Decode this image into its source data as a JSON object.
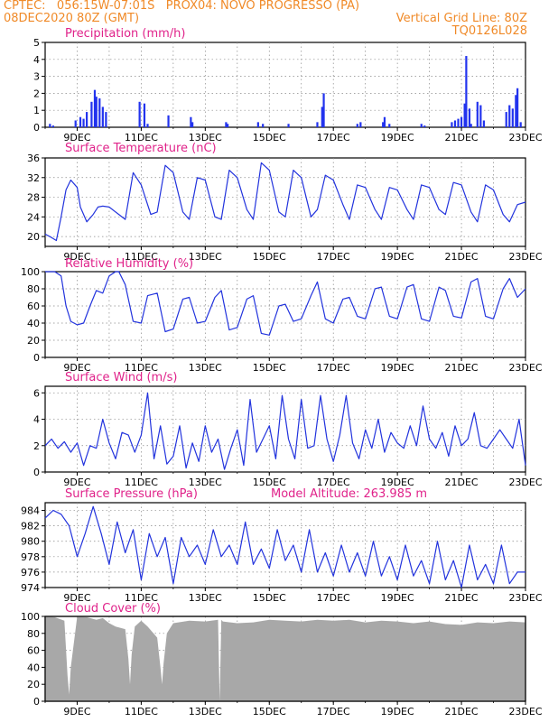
{
  "header": {
    "left_line1": "CPTEC:   056:15W-07:01S   PROX04: NOVO PROGRESSO (PA)",
    "left_line2": "08DEC2020 80Z (GMT)",
    "right_line2": "Vertical Grid Line: 80Z",
    "right_line3": "TQ0126L028"
  },
  "colors": {
    "header": "#f08a28",
    "title": "#e0228a",
    "line": "#2233dd",
    "bar": "#2233ee",
    "cloud": "#a8a8a8",
    "grid": "#888888"
  },
  "x_date_labels": [
    "9DEC",
    "11DEC",
    "13DEC",
    "15DEC",
    "17DEC",
    "19DEC",
    "21DEC",
    "23DEC"
  ],
  "chart_data": [
    {
      "type": "bar",
      "title": "Precipitation (mm/h)",
      "xlim": [
        8,
        23
      ],
      "ylim": [
        0,
        5
      ],
      "yticks": [
        0,
        1,
        2,
        3,
        4,
        5
      ],
      "x": [
        8.15,
        8.25,
        8.95,
        9.1,
        9.2,
        9.3,
        9.45,
        9.55,
        9.6,
        9.7,
        9.8,
        9.9,
        10.95,
        11.1,
        11.2,
        11.85,
        12.55,
        12.6,
        13.65,
        13.7,
        14.65,
        14.8,
        15.6,
        16.5,
        16.65,
        16.7,
        17.75,
        17.85,
        18.55,
        18.6,
        18.75,
        19.75,
        19.85,
        20.7,
        20.8,
        20.9,
        21.0,
        21.1,
        21.15,
        21.25,
        21.3,
        21.5,
        21.6,
        21.7,
        22.4,
        22.5,
        22.6,
        22.7,
        22.75,
        22.85
      ],
      "values": [
        0.2,
        0.1,
        0.4,
        0.6,
        0.5,
        0.9,
        1.5,
        2.2,
        1.8,
        1.7,
        1.2,
        0.9,
        1.5,
        1.4,
        0.2,
        0.7,
        0.6,
        0.3,
        0.3,
        0.2,
        0.3,
        0.2,
        0.2,
        0.3,
        1.2,
        2.0,
        0.2,
        0.3,
        0.3,
        0.6,
        0.2,
        0.2,
        0.1,
        0.3,
        0.4,
        0.5,
        0.6,
        1.4,
        4.2,
        1.1,
        0.2,
        1.5,
        1.3,
        0.4,
        0.9,
        1.3,
        1.1,
        1.9,
        2.3,
        0.3
      ]
    },
    {
      "type": "line",
      "title": "Surface Temperature (nC)",
      "xlim": [
        8,
        23
      ],
      "ylim": [
        18,
        36
      ],
      "yticks": [
        20,
        24,
        28,
        32,
        36
      ],
      "x": [
        8.0,
        8.2,
        8.35,
        8.5,
        8.65,
        8.8,
        9.0,
        9.1,
        9.3,
        9.5,
        9.65,
        9.8,
        10.0,
        10.3,
        10.5,
        10.75,
        11.0,
        11.3,
        11.5,
        11.75,
        12.0,
        12.3,
        12.5,
        12.75,
        13.0,
        13.3,
        13.5,
        13.75,
        14.0,
        14.3,
        14.5,
        14.75,
        15.0,
        15.3,
        15.5,
        15.75,
        16.0,
        16.3,
        16.5,
        16.75,
        17.0,
        17.3,
        17.5,
        17.75,
        18.0,
        18.3,
        18.5,
        18.75,
        19.0,
        19.3,
        19.5,
        19.75,
        20.0,
        20.3,
        20.5,
        20.75,
        21.0,
        21.3,
        21.5,
        21.75,
        22.0,
        22.3,
        22.5,
        22.75,
        23.0
      ],
      "values": [
        20.5,
        19.8,
        19.2,
        24.0,
        29.5,
        31.5,
        30.0,
        26.0,
        23.0,
        24.5,
        26.0,
        26.2,
        26.0,
        24.5,
        23.5,
        33.0,
        30.5,
        24.5,
        25.0,
        34.5,
        33.0,
        25.0,
        23.5,
        32.0,
        31.5,
        24.0,
        23.5,
        33.5,
        32.0,
        25.5,
        23.5,
        35.0,
        33.5,
        25.0,
        24.0,
        33.5,
        32.0,
        24.0,
        25.5,
        32.5,
        31.5,
        26.5,
        23.5,
        30.5,
        30.0,
        25.5,
        23.5,
        30.0,
        29.5,
        25.5,
        23.5,
        30.5,
        30.0,
        25.5,
        24.5,
        31.0,
        30.5,
        25.0,
        23.0,
        30.5,
        29.5,
        24.5,
        23.0,
        26.5,
        27.0
      ]
    },
    {
      "type": "line",
      "title": "Relative Humidity (%)",
      "xlim": [
        8,
        23
      ],
      "ylim": [
        0,
        100
      ],
      "yticks": [
        0,
        20,
        40,
        60,
        80,
        100
      ],
      "x": [
        8.0,
        8.3,
        8.5,
        8.65,
        8.8,
        9.0,
        9.2,
        9.4,
        9.6,
        9.8,
        10.0,
        10.2,
        10.3,
        10.5,
        10.75,
        11.0,
        11.2,
        11.5,
        11.75,
        12.0,
        12.3,
        12.5,
        12.75,
        13.0,
        13.3,
        13.5,
        13.75,
        14.0,
        14.3,
        14.5,
        14.75,
        15.0,
        15.3,
        15.5,
        15.75,
        16.0,
        16.3,
        16.5,
        16.75,
        17.0,
        17.3,
        17.5,
        17.75,
        18.0,
        18.3,
        18.5,
        18.75,
        19.0,
        19.3,
        19.5,
        19.75,
        20.0,
        20.3,
        20.5,
        20.75,
        21.0,
        21.3,
        21.5,
        21.75,
        22.0,
        22.3,
        22.5,
        22.75,
        23.0
      ],
      "values": [
        100,
        100,
        95,
        60,
        42,
        38,
        40,
        60,
        78,
        75,
        95,
        100,
        100,
        85,
        42,
        40,
        72,
        75,
        30,
        33,
        68,
        70,
        40,
        42,
        70,
        78,
        32,
        35,
        68,
        72,
        28,
        26,
        60,
        62,
        42,
        45,
        72,
        88,
        45,
        40,
        68,
        70,
        48,
        45,
        80,
        82,
        48,
        45,
        82,
        85,
        45,
        42,
        82,
        78,
        48,
        46,
        88,
        92,
        48,
        45,
        80,
        92,
        70,
        80
      ]
    },
    {
      "type": "line",
      "title": "Surface Wind (m/s)",
      "xlim": [
        8,
        23
      ],
      "ylim": [
        0,
        6.5
      ],
      "yticks": [
        0,
        2,
        4,
        6
      ],
      "x": [
        8.0,
        8.2,
        8.4,
        8.6,
        8.8,
        9.0,
        9.2,
        9.4,
        9.6,
        9.8,
        10.0,
        10.2,
        10.4,
        10.6,
        10.8,
        11.0,
        11.2,
        11.4,
        11.6,
        11.8,
        12.0,
        12.2,
        12.4,
        12.6,
        12.8,
        13.0,
        13.2,
        13.4,
        13.6,
        13.8,
        14.0,
        14.2,
        14.4,
        14.6,
        14.8,
        15.0,
        15.2,
        15.4,
        15.6,
        15.8,
        16.0,
        16.2,
        16.4,
        16.6,
        16.8,
        17.0,
        17.2,
        17.4,
        17.6,
        17.8,
        18.0,
        18.2,
        18.4,
        18.6,
        18.8,
        19.0,
        19.2,
        19.4,
        19.6,
        19.8,
        20.0,
        20.2,
        20.4,
        20.6,
        20.8,
        21.0,
        21.2,
        21.4,
        21.6,
        21.8,
        22.0,
        22.2,
        22.4,
        22.6,
        22.8,
        23.0
      ],
      "values": [
        2.0,
        2.5,
        1.8,
        2.3,
        1.5,
        2.2,
        0.5,
        2.0,
        1.8,
        4.0,
        2.2,
        1.0,
        3.0,
        2.8,
        1.5,
        2.8,
        6.0,
        1.0,
        3.5,
        0.6,
        1.2,
        3.5,
        0.3,
        2.2,
        0.8,
        3.5,
        1.5,
        2.5,
        0.2,
        1.8,
        3.2,
        0.5,
        5.5,
        1.5,
        2.5,
        3.5,
        1.0,
        5.8,
        2.5,
        1.0,
        5.5,
        1.8,
        2.0,
        5.8,
        2.5,
        0.8,
        2.8,
        5.8,
        2.2,
        1.0,
        3.2,
        1.8,
        4.0,
        1.5,
        3.0,
        2.2,
        1.8,
        3.5,
        2.0,
        5.0,
        2.5,
        1.8,
        3.0,
        1.2,
        3.5,
        2.0,
        2.5,
        4.5,
        2.0,
        1.8,
        2.5,
        3.2,
        2.5,
        1.8,
        4.0,
        0.5
      ]
    },
    {
      "type": "line",
      "title": "Surface Pressure (hPa)",
      "annotation": "Model Altitude: 263.985 m",
      "xlim": [
        8,
        23
      ],
      "ylim": [
        974,
        985
      ],
      "yticks": [
        974,
        976,
        978,
        980,
        982,
        984
      ],
      "x": [
        8.0,
        8.25,
        8.5,
        8.75,
        9.0,
        9.25,
        9.5,
        9.75,
        10.0,
        10.25,
        10.5,
        10.75,
        11.0,
        11.25,
        11.5,
        11.75,
        12.0,
        12.25,
        12.5,
        12.75,
        13.0,
        13.25,
        13.5,
        13.75,
        14.0,
        14.25,
        14.5,
        14.75,
        15.0,
        15.25,
        15.5,
        15.75,
        16.0,
        16.25,
        16.5,
        16.75,
        17.0,
        17.25,
        17.5,
        17.75,
        18.0,
        18.25,
        18.5,
        18.75,
        19.0,
        19.25,
        19.5,
        19.75,
        20.0,
        20.25,
        20.5,
        20.75,
        21.0,
        21.25,
        21.5,
        21.75,
        22.0,
        22.25,
        22.5,
        22.75,
        23.0
      ],
      "values": [
        983.0,
        984.0,
        983.5,
        982.0,
        978.0,
        981.0,
        984.5,
        981.0,
        977.0,
        982.5,
        978.5,
        981.5,
        975.0,
        981.0,
        978.0,
        980.5,
        974.5,
        980.5,
        978.0,
        979.5,
        977.0,
        981.5,
        978.0,
        979.5,
        977.0,
        982.5,
        977.0,
        979.0,
        976.5,
        981.5,
        977.5,
        979.5,
        976.0,
        981.5,
        976.0,
        978.5,
        975.5,
        979.5,
        976.0,
        978.5,
        975.5,
        980.0,
        975.5,
        978.0,
        975.0,
        979.5,
        975.5,
        977.5,
        974.5,
        980.0,
        975.0,
        977.5,
        974.0,
        979.5,
        975.0,
        977.0,
        974.5,
        979.5,
        974.5,
        976.0,
        976.0
      ]
    },
    {
      "type": "area",
      "title": "Cloud Cover (%)",
      "xlim": [
        8,
        23
      ],
      "ylim": [
        0,
        100
      ],
      "yticks": [
        0,
        20,
        40,
        60,
        80,
        100
      ],
      "x": [
        8.0,
        8.3,
        8.6,
        8.7,
        8.75,
        8.8,
        9.0,
        9.3,
        9.6,
        9.8,
        10.0,
        10.2,
        10.5,
        10.6,
        10.65,
        10.7,
        10.8,
        11.0,
        11.2,
        11.5,
        11.6,
        11.65,
        11.7,
        11.8,
        12.0,
        12.5,
        13.0,
        13.4,
        13.45,
        13.5,
        13.55,
        14.0,
        14.5,
        15.0,
        15.5,
        16.0,
        16.5,
        17.0,
        17.5,
        18.0,
        18.5,
        19.0,
        19.5,
        20.0,
        20.5,
        21.0,
        21.5,
        22.0,
        22.5,
        23.0
      ],
      "values": [
        100,
        99,
        95,
        30,
        8,
        40,
        100,
        99,
        96,
        98,
        92,
        88,
        85,
        50,
        20,
        55,
        88,
        95,
        88,
        75,
        40,
        20,
        45,
        80,
        92,
        95,
        94,
        96,
        0,
        96,
        94,
        92,
        93,
        96,
        95,
        94,
        96,
        95,
        96,
        93,
        95,
        94,
        92,
        94,
        91,
        90,
        93,
        92,
        94,
        93
      ]
    }
  ]
}
